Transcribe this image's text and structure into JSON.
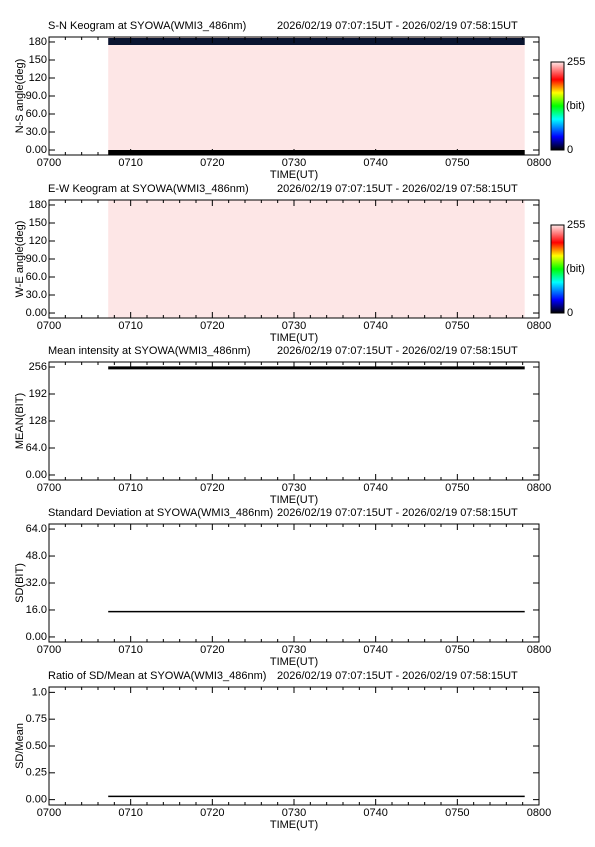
{
  "chart_data": [
    {
      "type": "keogram",
      "title": "S-N Keogram at SYOWA(WMI3_486nm)",
      "subtitle": "2026/02/19 07:07:15UT - 2026/02/19 07:58:15UT",
      "xlabel": "TIME(UT)",
      "ylabel": "N-S angle(deg)",
      "xlim": [
        0,
        60
      ],
      "xticks": [
        {
          "value": 0,
          "label": "0700"
        },
        {
          "value": 10,
          "label": "0710"
        },
        {
          "value": 20,
          "label": "0720"
        },
        {
          "value": 30,
          "label": "0730"
        },
        {
          "value": 40,
          "label": "0740"
        },
        {
          "value": 50,
          "label": "0750"
        },
        {
          "value": 60,
          "label": "0800"
        }
      ],
      "ylim": [
        -8.3,
        188.3
      ],
      "yticks": [
        {
          "value": 0,
          "label": "0.00"
        },
        {
          "value": 30,
          "label": "30.0"
        },
        {
          "value": 60,
          "label": "60.0"
        },
        {
          "value": 90,
          "label": "90.0"
        },
        120,
        150,
        180
      ],
      "x": [
        7.25,
        58.25
      ],
      "colorbar_ticks": [
        0,
        255
      ],
      "colorbar_label": "(bit)"
    },
    {
      "type": "keogram",
      "title": "E-W Keogram at SYOWA(WMI3_486nm)",
      "subtitle": "2026/02/19 07:07:15UT - 2026/02/19 07:58:15UT",
      "xlabel": "TIME(UT)",
      "ylabel": "W-E angle(deg)",
      "xlim": [
        0,
        60
      ],
      "xticks": [
        {
          "value": 0,
          "label": "0700"
        },
        {
          "value": 10,
          "label": "0710"
        },
        {
          "value": 20,
          "label": "0720"
        },
        {
          "value": 30,
          "label": "0730"
        },
        {
          "value": 40,
          "label": "0740"
        },
        {
          "value": 50,
          "label": "0750"
        },
        {
          "value": 60,
          "label": "0800"
        }
      ],
      "ylim": [
        -8.3,
        188.3
      ],
      "yticks": [
        {
          "value": 0,
          "label": "0.00"
        },
        {
          "value": 30,
          "label": "30.0"
        },
        {
          "value": 60,
          "label": "60.0"
        },
        {
          "value": 90,
          "label": "90.0"
        },
        120,
        150,
        180
      ],
      "x": [
        7.25,
        58.25
      ],
      "colorbar_ticks": [
        0,
        255
      ],
      "colorbar_label": "(bit)"
    },
    {
      "type": "line",
      "title": "Mean intensity at SYOWA(WMI3_486nm)",
      "subtitle": "2026/02/19 07:07:15UT - 2026/02/19 07:58:15UT",
      "xlabel": "TIME(UT)",
      "ylabel": "MEAN(BIT)",
      "xlim": [
        0,
        60
      ],
      "xticks": [
        {
          "value": 0,
          "label": "0700"
        },
        {
          "value": 10,
          "label": "0710"
        },
        {
          "value": 20,
          "label": "0720"
        },
        {
          "value": 30,
          "label": "0730"
        },
        {
          "value": 40,
          "label": "0740"
        },
        {
          "value": 50,
          "label": "0750"
        },
        {
          "value": 60,
          "label": "0800"
        }
      ],
      "ylim": [
        -11.9,
        267.9
      ],
      "yticks": [
        {
          "value": 0,
          "label": "0.00"
        },
        {
          "value": 64,
          "label": "64.0"
        },
        128,
        192,
        256
      ],
      "x": [
        7.25,
        20,
        30,
        40,
        50,
        58.25
      ],
      "series": [
        {
          "color": "#000000",
          "values": [
            254,
            254,
            254,
            254,
            254,
            254
          ]
        }
      ]
    },
    {
      "type": "line",
      "title": "Standard Deviation at SYOWA(WMI3_486nm)",
      "subtitle": "2026/02/19 07:07:15UT - 2026/02/19 07:58:15UT",
      "xlabel": "TIME(UT)",
      "ylabel": "SD(BIT)",
      "xlim": [
        0,
        60
      ],
      "xticks": [
        {
          "value": 0,
          "label": "0700"
        },
        {
          "value": 10,
          "label": "0710"
        },
        {
          "value": 20,
          "label": "0720"
        },
        {
          "value": 30,
          "label": "0730"
        },
        {
          "value": 40,
          "label": "0740"
        },
        {
          "value": 50,
          "label": "0750"
        },
        {
          "value": 60,
          "label": "0800"
        }
      ],
      "ylim": [
        -3,
        67
      ],
      "yticks": [
        {
          "value": 0,
          "label": "0.00"
        },
        {
          "value": 16,
          "label": "16.0"
        },
        {
          "value": 32,
          "label": "32.0"
        },
        {
          "value": 48,
          "label": "48.0"
        },
        {
          "value": 64,
          "label": "64.0"
        }
      ],
      "x": [
        7.25,
        20,
        30,
        40,
        50,
        58.25
      ],
      "series": [
        {
          "color": "#000000",
          "values": [
            15,
            15,
            15,
            15,
            15,
            15
          ]
        }
      ]
    },
    {
      "type": "line",
      "title": "Ratio of SD/Mean at SYOWA(WMI3_486nm)",
      "subtitle": "2026/02/19 07:07:15UT - 2026/02/19 07:58:15UT",
      "xlabel": "TIME(UT)",
      "ylabel": "SD/Mean",
      "xlim": [
        0,
        60
      ],
      "xticks": [
        {
          "value": 0,
          "label": "0700"
        },
        {
          "value": 10,
          "label": "0710"
        },
        {
          "value": 20,
          "label": "0720"
        },
        {
          "value": 30,
          "label": "0730"
        },
        {
          "value": 40,
          "label": "0740"
        },
        {
          "value": 50,
          "label": "0750"
        },
        {
          "value": 60,
          "label": "0800"
        }
      ],
      "ylim": [
        -0.05,
        1.05
      ],
      "yticks": [
        {
          "value": 0,
          "label": "0.00"
        },
        0.25,
        {
          "value": 0.5,
          "label": "0.50"
        },
        0.75,
        {
          "value": 1,
          "label": "1.0"
        }
      ],
      "x": [
        7.25,
        20,
        30,
        40,
        50,
        58.25
      ],
      "series": [
        {
          "color": "#000000",
          "values": [
            0.03,
            0.03,
            0.03,
            0.03,
            0.03,
            0.03
          ]
        }
      ]
    }
  ]
}
